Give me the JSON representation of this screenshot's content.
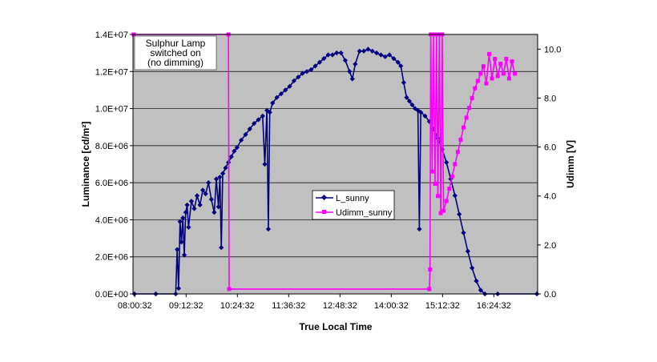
{
  "chart_data": {
    "type": "line",
    "xlabel": "True Local Time",
    "ylabel_left": "Luminance [cd/m²]",
    "ylabel_right": "Udimm [V]",
    "x_ticks": [
      "08:00:32",
      "09:12:32",
      "10:24:32",
      "11:36:32",
      "12:48:32",
      "14:00:32",
      "15:12:32",
      "16:24:32"
    ],
    "x_range": [
      "07:58:00",
      "17:26:00"
    ],
    "ylim_left": [
      0,
      14000000
    ],
    "ylim_right": [
      0,
      10.6
    ],
    "y_ticks_left": [
      "0.0E+00",
      "2.0E+06",
      "4.0E+06",
      "6.0E+06",
      "8.0E+06",
      "1.0E+07",
      "1.2E+07",
      "1.4E+07"
    ],
    "y_ticks_right": [
      "0.0",
      "2.0",
      "4.0",
      "6.0",
      "8.0",
      "10.0"
    ],
    "grid": "horizontal",
    "annotation": [
      "Sulphur Lamp",
      "switched on",
      "(no dimming)"
    ],
    "legend_position": "center",
    "colors": {
      "L_sunny": "#000080",
      "Udimm_sunny": "#ff00ff",
      "plot_bg": "#c0c0c0"
    },
    "series": [
      {
        "name": "L_sunny",
        "axis": "left",
        "marker": "diamond",
        "points": [
          [
            "08:00",
            0
          ],
          [
            "08:30",
            0
          ],
          [
            "08:58",
            0
          ],
          [
            "09:00",
            2400000
          ],
          [
            "09:02",
            300000
          ],
          [
            "09:04",
            3900000
          ],
          [
            "09:06",
            2800000
          ],
          [
            "09:08",
            4100000
          ],
          [
            "09:10",
            2100000
          ],
          [
            "09:12",
            4400000
          ],
          [
            "09:14",
            4800000
          ],
          [
            "09:16",
            3600000
          ],
          [
            "09:20",
            5000000
          ],
          [
            "09:24",
            4600000
          ],
          [
            "09:28",
            5300000
          ],
          [
            "09:32",
            4800000
          ],
          [
            "09:36",
            5600000
          ],
          [
            "09:40",
            5400000
          ],
          [
            "09:44",
            6000000
          ],
          [
            "09:48",
            5100000
          ],
          [
            "09:52",
            4400000
          ],
          [
            "09:55",
            6200000
          ],
          [
            "09:58",
            4700000
          ],
          [
            "10:00",
            6300000
          ],
          [
            "10:02",
            2500000
          ],
          [
            "10:04",
            6500000
          ],
          [
            "10:08",
            6800000
          ],
          [
            "10:12",
            7100000
          ],
          [
            "10:16",
            7400000
          ],
          [
            "10:20",
            7700000
          ],
          [
            "10:24",
            7900000
          ],
          [
            "10:30",
            8300000
          ],
          [
            "10:36",
            8600000
          ],
          [
            "10:42",
            8900000
          ],
          [
            "10:48",
            9200000
          ],
          [
            "10:54",
            9400000
          ],
          [
            "11:00",
            9600000
          ],
          [
            "11:03",
            7000000
          ],
          [
            "11:06",
            9900000
          ],
          [
            "11:08",
            3500000
          ],
          [
            "11:10",
            9800000
          ],
          [
            "11:14",
            10300000
          ],
          [
            "11:20",
            10600000
          ],
          [
            "11:26",
            10800000
          ],
          [
            "11:32",
            11000000
          ],
          [
            "11:38",
            11200000
          ],
          [
            "11:44",
            11500000
          ],
          [
            "11:50",
            11700000
          ],
          [
            "11:56",
            11900000
          ],
          [
            "12:02",
            12000000
          ],
          [
            "12:08",
            12100000
          ],
          [
            "12:14",
            12300000
          ],
          [
            "12:20",
            12500000
          ],
          [
            "12:26",
            12700000
          ],
          [
            "12:32",
            12900000
          ],
          [
            "12:38",
            12900000
          ],
          [
            "12:44",
            13000000
          ],
          [
            "12:50",
            13000000
          ],
          [
            "12:56",
            12600000
          ],
          [
            "13:02",
            12000000
          ],
          [
            "13:06",
            11600000
          ],
          [
            "13:10",
            12400000
          ],
          [
            "13:16",
            13100000
          ],
          [
            "13:22",
            13100000
          ],
          [
            "13:28",
            13200000
          ],
          [
            "13:34",
            13100000
          ],
          [
            "13:40",
            13000000
          ],
          [
            "13:46",
            12900000
          ],
          [
            "13:52",
            12800000
          ],
          [
            "13:58",
            12900000
          ],
          [
            "14:04",
            12700000
          ],
          [
            "14:10",
            12500000
          ],
          [
            "14:14",
            12300000
          ],
          [
            "14:18",
            11400000
          ],
          [
            "14:22",
            10600000
          ],
          [
            "14:26",
            10400000
          ],
          [
            "14:30",
            10200000
          ],
          [
            "14:34",
            10000000
          ],
          [
            "14:38",
            9900000
          ],
          [
            "14:40",
            3500000
          ],
          [
            "14:42",
            9800000
          ],
          [
            "14:48",
            9600000
          ],
          [
            "14:54",
            9300000
          ],
          [
            "15:00",
            8900000
          ],
          [
            "15:06",
            8400000
          ],
          [
            "15:12",
            7800000
          ],
          [
            "15:18",
            7100000
          ],
          [
            "15:24",
            6200000
          ],
          [
            "15:30",
            5300000
          ],
          [
            "15:36",
            4300000
          ],
          [
            "15:42",
            3300000
          ],
          [
            "15:48",
            2300000
          ],
          [
            "15:54",
            1400000
          ],
          [
            "16:00",
            700000
          ],
          [
            "16:06",
            200000
          ],
          [
            "16:12",
            0
          ],
          [
            "16:30",
            0
          ],
          [
            "17:25",
            0
          ]
        ]
      },
      {
        "name": "Udimm_sunny",
        "axis": "right",
        "marker": "square",
        "points": [
          [
            "07:59",
            10.6
          ],
          [
            "10:12",
            10.6
          ],
          [
            "10:13",
            0.2
          ],
          [
            "14:54",
            0.2
          ],
          [
            "14:55",
            1.0
          ],
          [
            "14:56",
            10.6
          ],
          [
            "14:58",
            5.0
          ],
          [
            "15:00",
            10.6
          ],
          [
            "15:02",
            4.5
          ],
          [
            "15:04",
            10.6
          ],
          [
            "15:06",
            4.0
          ],
          [
            "15:08",
            10.6
          ],
          [
            "15:10",
            3.3
          ],
          [
            "15:12",
            10.6
          ],
          [
            "15:14",
            3.4
          ],
          [
            "15:18",
            3.8
          ],
          [
            "15:22",
            4.3
          ],
          [
            "15:26",
            4.8
          ],
          [
            "15:30",
            5.3
          ],
          [
            "15:34",
            5.8
          ],
          [
            "15:38",
            6.3
          ],
          [
            "15:42",
            6.8
          ],
          [
            "15:46",
            7.2
          ],
          [
            "15:50",
            7.6
          ],
          [
            "15:54",
            8.0
          ],
          [
            "15:58",
            8.4
          ],
          [
            "16:02",
            8.7
          ],
          [
            "16:06",
            9.0
          ],
          [
            "16:10",
            9.3
          ],
          [
            "16:14",
            8.6
          ],
          [
            "16:18",
            9.8
          ],
          [
            "16:22",
            8.8
          ],
          [
            "16:26",
            9.6
          ],
          [
            "16:30",
            8.9
          ],
          [
            "16:34",
            9.4
          ],
          [
            "16:38",
            9.0
          ],
          [
            "16:42",
            9.6
          ],
          [
            "16:46",
            8.8
          ],
          [
            "16:50",
            9.5
          ],
          [
            "16:54",
            9.0
          ]
        ]
      }
    ]
  }
}
